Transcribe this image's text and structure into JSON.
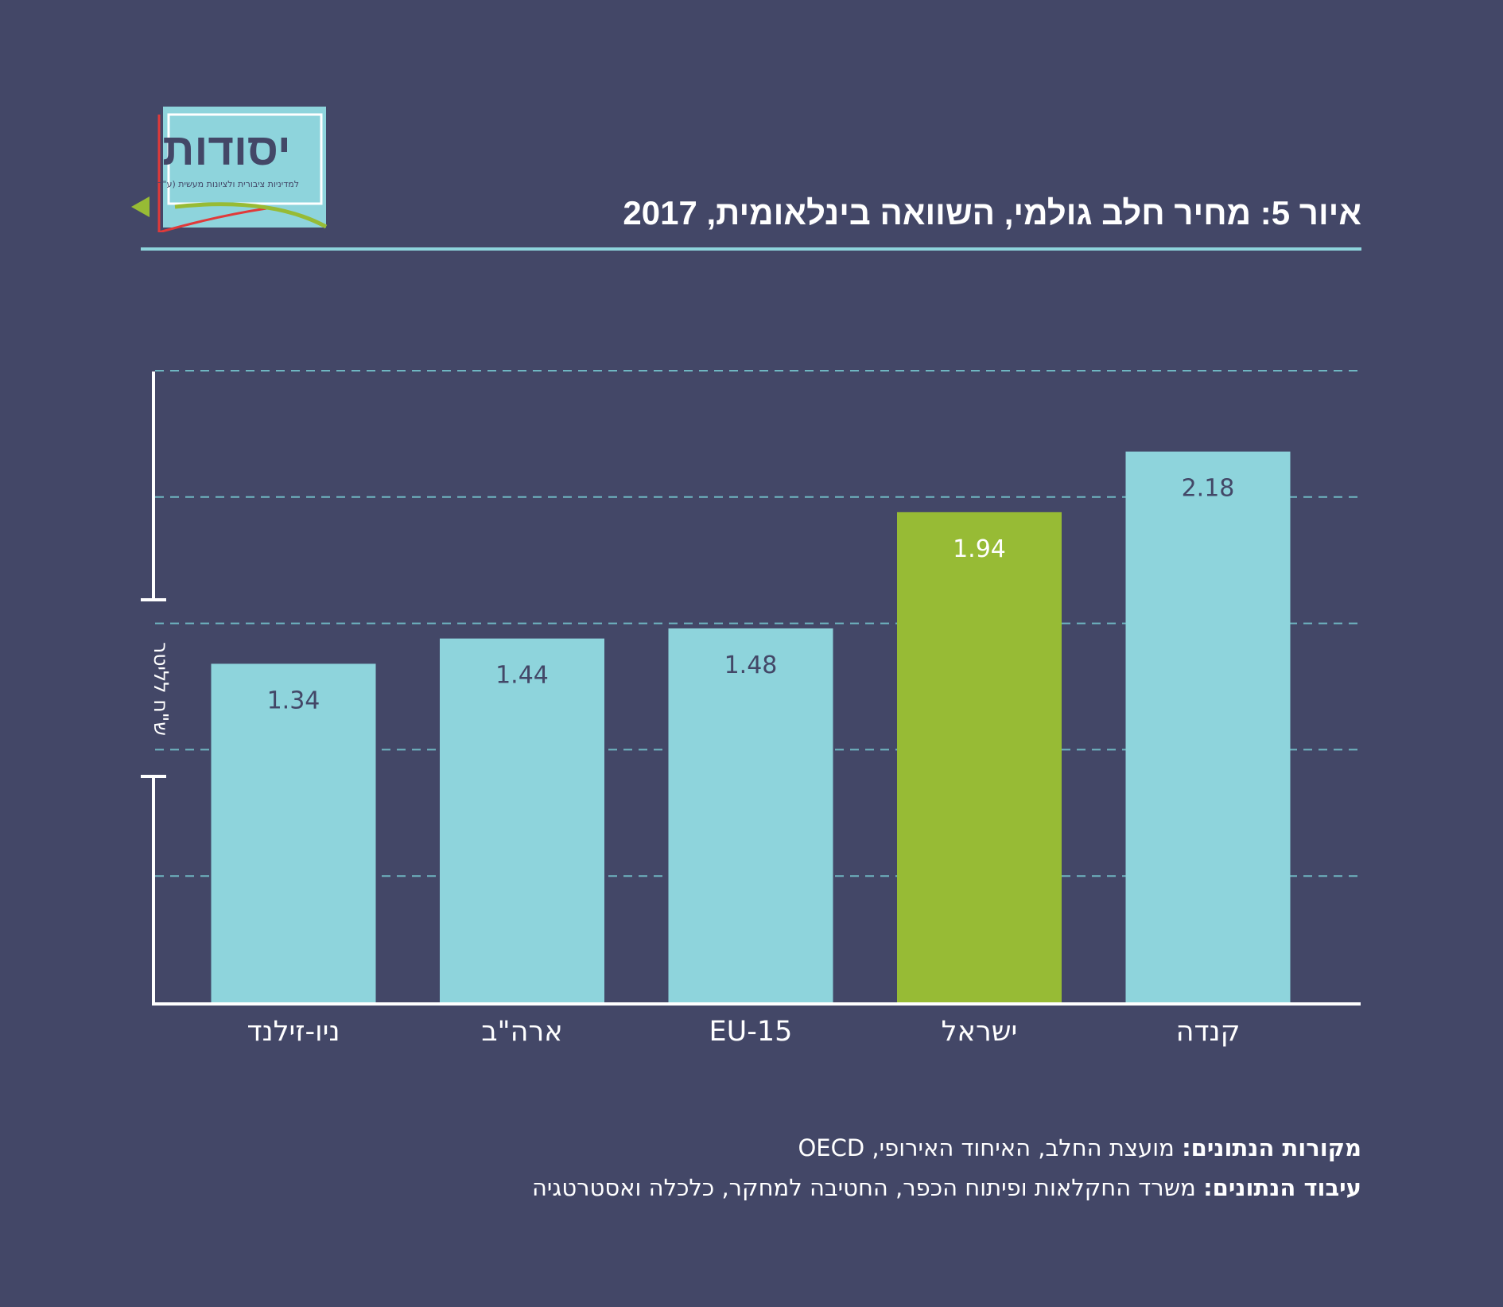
{
  "logo": {
    "name": "יסודות",
    "tagline": "למדיניות ציבורית ולציונות מעשית (ע\"ר)"
  },
  "colors": {
    "background": "#434767",
    "bar_default": "#8ed4dc",
    "bar_highlight": "#97bb35",
    "grid": "#6fb6c1",
    "axis": "#ffffff"
  },
  "chart_data": {
    "type": "bar",
    "title": "איור 5: מחיר חלב גולמי, השוואה בינלאומית, 2017",
    "ylabel": "ש\"ח לליטר",
    "categories": [
      "ניו-זילנד",
      "ארה\"ב",
      "EU-15",
      "ישראל",
      "קנדה"
    ],
    "values": [
      1.34,
      1.44,
      1.48,
      1.94,
      2.18
    ],
    "highlight": "ישראל",
    "ylim": [
      0,
      2.5
    ],
    "grid": true
  },
  "footer": {
    "sources_label": "מקורות הנתונים:",
    "sources_text": "מועצת החלב, האיחוד האירופי, OECD",
    "processing_label": "עיבוד הנתונים:",
    "processing_text": "משרד החקלאות ופיתוח הכפר, החטיבה למחקר, כלכלה ואסטרטגיה"
  }
}
